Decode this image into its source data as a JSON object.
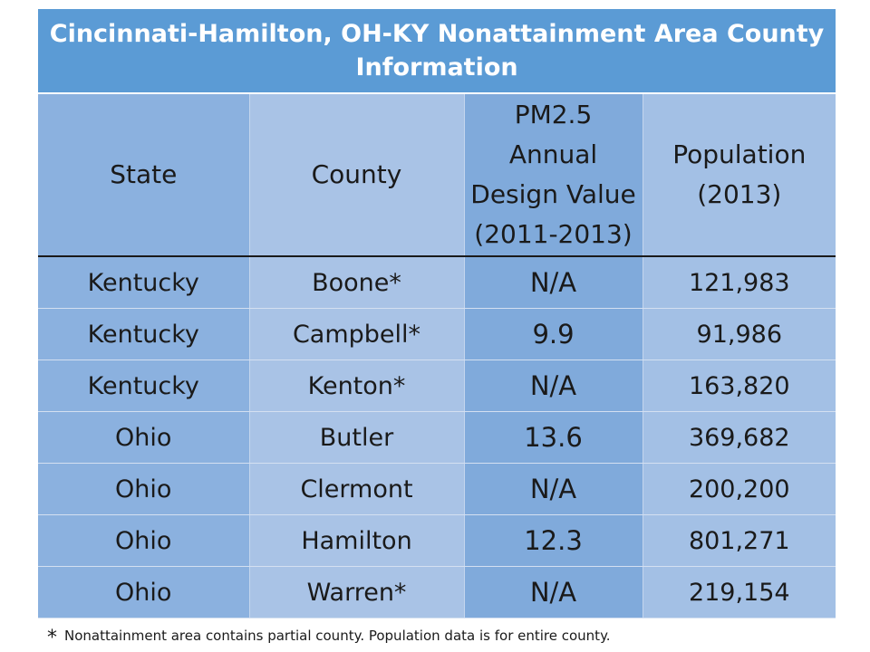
{
  "table": {
    "title": "Cincinnati-Hamilton, OH-KY Nonattainment Area County Information",
    "headers": {
      "state": "State",
      "county": "County",
      "pm_line1": "PM2.5",
      "pm_line2": "Annual",
      "pm_line3": "Design Value",
      "pm_line4": "(2011-2013)",
      "pop_line1": "Population",
      "pop_line2": "(2013)"
    },
    "rows": [
      {
        "state": "Kentucky",
        "county": "Boone*",
        "pm": "N/A",
        "population": "121,983"
      },
      {
        "state": "Kentucky",
        "county": "Campbell*",
        "pm": "9.9",
        "population": "91,986"
      },
      {
        "state": "Kentucky",
        "county": "Kenton*",
        "pm": "N/A",
        "population": "163,820"
      },
      {
        "state": "Ohio",
        "county": "Butler",
        "pm": "13.6",
        "population": "369,682"
      },
      {
        "state": "Ohio",
        "county": "Clermont",
        "pm": "N/A",
        "population": "200,200"
      },
      {
        "state": "Ohio",
        "county": "Hamilton",
        "pm": "12.3",
        "population": "801,271"
      },
      {
        "state": "Ohio",
        "county": "Warren*",
        "pm": "N/A",
        "population": "219,154"
      }
    ]
  },
  "footnote": {
    "symbol": "*",
    "text": "Nonattainment area contains partial county.  Population data is for entire county."
  },
  "colors": {
    "title_bg": "#5b9bd5",
    "state_col": "#8bb1df",
    "county_col": "#a9c3e6",
    "pm_col": "#80aadb",
    "population_col": "#a3c0e5"
  }
}
